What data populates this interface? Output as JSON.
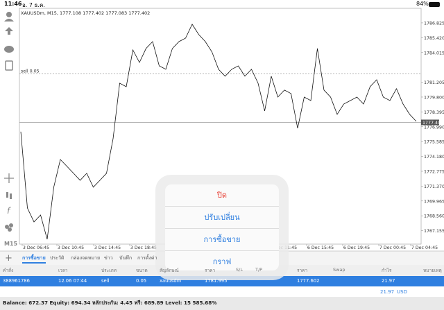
{
  "status_bar": {
    "time": "11:46",
    "date": "อ. 7 ธ.ค.",
    "battery": "84%"
  },
  "chart_data": {
    "type": "line",
    "title": "XAUUSDm, M15, 1777.108 1777.402 1777.083 1777.402",
    "series": [
      {
        "name": "XAUUSDm",
        "color": "#111111",
        "values": [
          1776.52,
          1769.3,
          1767.98,
          1768.64,
          1766.34,
          1771.27,
          1773.89,
          1773.24,
          1772.58,
          1771.92,
          1772.58,
          1771.27,
          1771.92,
          1772.58,
          1775.86,
          1781.11,
          1780.78,
          1784.26,
          1783.08,
          1784.4,
          1785.05,
          1782.75,
          1782.43,
          1784.4,
          1785.05,
          1785.38,
          1786.69,
          1785.71,
          1785.05,
          1784.07,
          1782.43,
          1781.77,
          1782.43,
          1782.75,
          1781.77,
          1782.43,
          1781.11,
          1778.49,
          1781.77,
          1779.8,
          1780.46,
          1780.13,
          1776.85,
          1779.8,
          1779.47,
          1784.4,
          1780.46,
          1779.8,
          1778.16,
          1779.14,
          1779.47,
          1779.8,
          1779.14,
          1780.78,
          1781.44,
          1779.8,
          1779.47,
          1780.59,
          1779.14,
          1778.16,
          1777.5
        ]
      }
    ],
    "ylim": [
      1765.88,
      1788.2
    ],
    "yticks": [
      1786.825,
      {
        "value": 1785.42,
        "label": "1785.420"
      },
      1784.015,
      1781.205,
      {
        "value": 1779.8,
        "label": "1779.800"
      },
      1778.395,
      {
        "value": 1776.99,
        "label": "1776.990"
      },
      1775.585,
      {
        "value": 1774.18,
        "label": "1774.180"
      },
      1772.775,
      {
        "value": 1771.37,
        "label": "1771.370"
      },
      1769.965,
      {
        "value": 1768.56,
        "label": "1768.560"
      },
      1767.155
    ],
    "x_labels": [
      "3 Dec 06:45",
      "3 Dec 10:45",
      "3 Dec 14:45",
      "3 Dec 18:45",
      "Dec 11:45",
      "6 Dec 15:45",
      "6 Dec 19:45",
      "7 Dec 00:45",
      "7 Dec 04:45"
    ],
    "current_price": 1777.402,
    "order_line": {
      "label": "sell 0.05",
      "price": 1781.995
    },
    "timeframe": "M15"
  },
  "popup": [
    "ปิด",
    "ปรับเปลี่ยน",
    "การซื้อขาย",
    "กราฟ"
  ],
  "tabs": [
    "การซื้อขาย",
    "ประวัติ",
    "กล่องจดหมาย",
    "ข่าว",
    "บันทึก",
    "การตั้งค่า"
  ],
  "table": {
    "headers": [
      "คำสั่ง",
      "เวลา",
      "ประเภท",
      "ขนาด",
      "สัญลักษณ์",
      "ราคา",
      "S/L",
      "T/P",
      "ราคา",
      "Swap",
      "กำไร",
      "หมายเหตุ"
    ],
    "row": [
      "388961786",
      "12.06 07:44",
      "sell",
      "0.05",
      "xauusdm",
      "1781.995",
      "",
      "",
      "1777.602",
      "",
      "21.97",
      ""
    ],
    "total": "21.97",
    "currency": "USD"
  },
  "balance": "Balance: 672.37 Equity: 694.34 หลักประกัน: 4.45 ฟรี: 689.89 Level: 15 585.68%"
}
